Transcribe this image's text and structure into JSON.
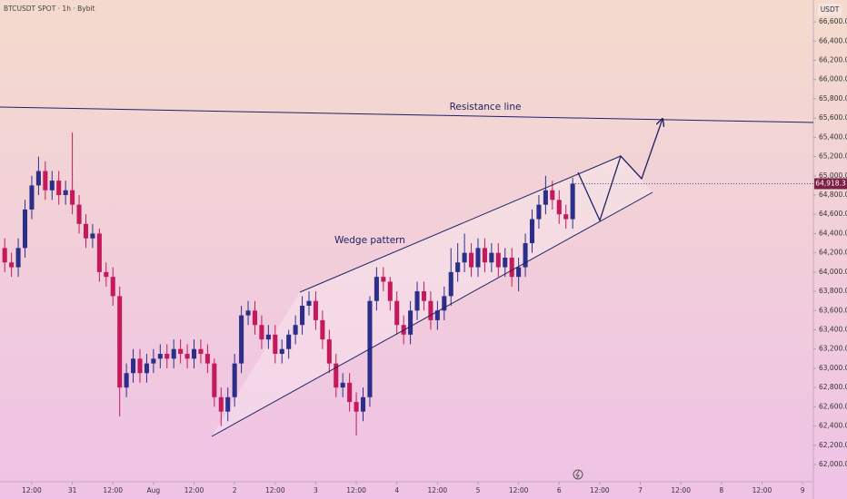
{
  "chart_data": {
    "type": "candlestick",
    "title": "BTCUSDT SPOT · 1h · Bybit",
    "currency": "USDT",
    "annotations": [
      "Resistance line",
      "Wedge pattern"
    ],
    "up_color": "#2c2f8a",
    "down_color": "#c4195c",
    "x": [
      -20,
      -18,
      -16,
      -14,
      -12,
      -10,
      -8,
      -6,
      -4,
      -2,
      0,
      2,
      4,
      6,
      8,
      10,
      12,
      14,
      16,
      18,
      20,
      22,
      24,
      26,
      28,
      30,
      32,
      34,
      36,
      38,
      40,
      42,
      44,
      46,
      48,
      50,
      52,
      54,
      56,
      58,
      60,
      62,
      64,
      66,
      68,
      70,
      72,
      74,
      76,
      78,
      80,
      82,
      84,
      86,
      88,
      90,
      92,
      94,
      96,
      98,
      100,
      102,
      104,
      106,
      108,
      110,
      112,
      114,
      116,
      118,
      120,
      122,
      124,
      126,
      128,
      130,
      132,
      134,
      136,
      138,
      140,
      142,
      144,
      146,
      148
    ],
    "open": [
      64250,
      64100,
      64050,
      64250,
      64650,
      64900,
      65050,
      64850,
      64950,
      64800,
      64850,
      64700,
      64500,
      64350,
      64400,
      64000,
      63950,
      63750,
      62800,
      62950,
      63100,
      62950,
      63050,
      63100,
      63150,
      63100,
      63200,
      63150,
      63100,
      63200,
      63150,
      63050,
      62700,
      62550,
      62700,
      63050,
      63550,
      63600,
      63450,
      63300,
      63350,
      63150,
      63200,
      63350,
      63450,
      63650,
      63700,
      63500,
      63300,
      63050,
      62800,
      62850,
      62650,
      62550,
      62700,
      63700,
      63950,
      63900,
      63700,
      63450,
      63350,
      63600,
      63800,
      63700,
      63500,
      63600,
      63750,
      64000,
      64100,
      64200,
      64050,
      64250,
      64100,
      64200,
      64050,
      64150,
      63950,
      64050,
      64300,
      64550,
      64700,
      64850,
      64750,
      64600,
      64550
    ],
    "high": [
      64350,
      64200,
      64350,
      64750,
      65000,
      65200,
      65150,
      65050,
      65050,
      64950,
      65450,
      64800,
      64600,
      64500,
      64450,
      64100,
      64050,
      63850,
      63050,
      63200,
      63200,
      63150,
      63200,
      63250,
      63250,
      63300,
      63300,
      63250,
      63300,
      63300,
      63250,
      63100,
      62800,
      62800,
      63150,
      63650,
      63700,
      63700,
      63550,
      63450,
      63450,
      63300,
      63400,
      63550,
      63750,
      63800,
      63800,
      63600,
      63400,
      63150,
      62950,
      62950,
      62750,
      62800,
      63750,
      64050,
      64050,
      63950,
      63800,
      63550,
      63700,
      63900,
      63900,
      63800,
      63700,
      63850,
      64250,
      64300,
      64400,
      64300,
      64350,
      64350,
      64300,
      64300,
      64250,
      64250,
      64150,
      64400,
      64650,
      64800,
      65000,
      64950,
      64850,
      64700,
      64980
    ],
    "low": [
      64000,
      63950,
      63950,
      64150,
      64550,
      64800,
      64750,
      64750,
      64700,
      64700,
      64600,
      64400,
      64250,
      64250,
      63900,
      63850,
      63650,
      62500,
      62700,
      62850,
      62850,
      62850,
      62950,
      63000,
      63000,
      63000,
      63050,
      63000,
      63000,
      63050,
      62950,
      62600,
      62400,
      62450,
      62600,
      62950,
      63450,
      63350,
      63200,
      63200,
      63050,
      63050,
      63100,
      63250,
      63350,
      63550,
      63400,
      63200,
      62950,
      62700,
      62700,
      62550,
      62300,
      62450,
      62600,
      63600,
      63800,
      63600,
      63350,
      63250,
      63250,
      63500,
      63600,
      63400,
      63400,
      63500,
      63650,
      63900,
      64000,
      63950,
      63950,
      64000,
      64000,
      63950,
      63950,
      63850,
      63800,
      63950,
      64200,
      64450,
      64600,
      64650,
      64500,
      64450,
      64450
    ],
    "close": [
      64100,
      64050,
      64250,
      64650,
      64900,
      65050,
      64850,
      64950,
      64800,
      64850,
      64700,
      64500,
      64350,
      64400,
      64000,
      63950,
      63750,
      62800,
      62950,
      63100,
      62950,
      63050,
      63100,
      63150,
      63100,
      63200,
      63150,
      63100,
      63200,
      63150,
      63050,
      62700,
      62550,
      62700,
      63050,
      63550,
      63600,
      63450,
      63300,
      63350,
      63150,
      63200,
      63350,
      63450,
      63650,
      63700,
      63500,
      63300,
      63050,
      62800,
      62850,
      62650,
      62550,
      62700,
      63700,
      63950,
      63900,
      63700,
      63450,
      63350,
      63600,
      63800,
      63700,
      63500,
      63600,
      63750,
      64000,
      64100,
      64200,
      64050,
      64250,
      64100,
      64200,
      64050,
      64150,
      63950,
      64050,
      64300,
      64550,
      64700,
      64850,
      64750,
      64600,
      64550,
      64918.3
    ],
    "last_value_label": "64,918.3",
    "xlim": [
      -21.4,
      219.2
    ],
    "xticks": [
      {
        "value": -12,
        "label": "12:00"
      },
      {
        "value": 0,
        "label": "31"
      },
      {
        "value": 12,
        "label": "12:00"
      },
      {
        "value": 24,
        "label": "Aug"
      },
      {
        "value": 36,
        "label": "12:00"
      },
      {
        "value": 48,
        "label": "2"
      },
      {
        "value": 60,
        "label": "12:00"
      },
      {
        "value": 72,
        "label": "3"
      },
      {
        "value": 84,
        "label": "12:00"
      },
      {
        "value": 96,
        "label": "4"
      },
      {
        "value": 108,
        "label": "12:00"
      },
      {
        "value": 120,
        "label": "5"
      },
      {
        "value": 132,
        "label": "12:00"
      },
      {
        "value": 144,
        "label": "6"
      },
      {
        "value": 156,
        "label": "12:00"
      },
      {
        "value": 168,
        "label": "7"
      },
      {
        "value": 180,
        "label": "12:00"
      },
      {
        "value": 192,
        "label": "8"
      },
      {
        "value": 204,
        "label": "12:00"
      },
      {
        "value": 216,
        "label": "9"
      }
    ],
    "ylim": [
      61821,
      66827
    ],
    "yticks": [
      {
        "value": 66600,
        "label": "66,600.0"
      },
      {
        "value": 66400,
        "label": "66,400.0"
      },
      {
        "value": 66200,
        "label": "66,200.0"
      },
      {
        "value": 66000,
        "label": "66,000.0"
      },
      {
        "value": 65800,
        "label": "65,800.0"
      },
      {
        "value": 65600,
        "label": "65,600.0"
      },
      {
        "value": 65400,
        "label": "65,400.0"
      },
      {
        "value": 65200,
        "label": "65,200.0"
      },
      {
        "value": 65000,
        "label": "65,000.0"
      },
      {
        "value": 64800,
        "label": "64,800.0"
      },
      {
        "value": 64600,
        "label": "64,600.0"
      },
      {
        "value": 64400,
        "label": "64,400.0"
      },
      {
        "value": 64200,
        "label": "64,200.0"
      },
      {
        "value": 64000,
        "label": "64,000.0"
      },
      {
        "value": 63800,
        "label": "63,800.0"
      },
      {
        "value": 63600,
        "label": "63,600.0"
      },
      {
        "value": 63400,
        "label": "63,400.0"
      },
      {
        "value": 63200,
        "label": "63,200.0"
      },
      {
        "value": 63000,
        "label": "63,000.0"
      },
      {
        "value": 62800,
        "label": "62,800.0"
      },
      {
        "value": 62600,
        "label": "62,600.0"
      },
      {
        "value": 62400,
        "label": "62,400.0"
      },
      {
        "value": 62200,
        "label": "62,200.0"
      },
      {
        "value": 62000,
        "label": "62,000.0"
      }
    ]
  }
}
